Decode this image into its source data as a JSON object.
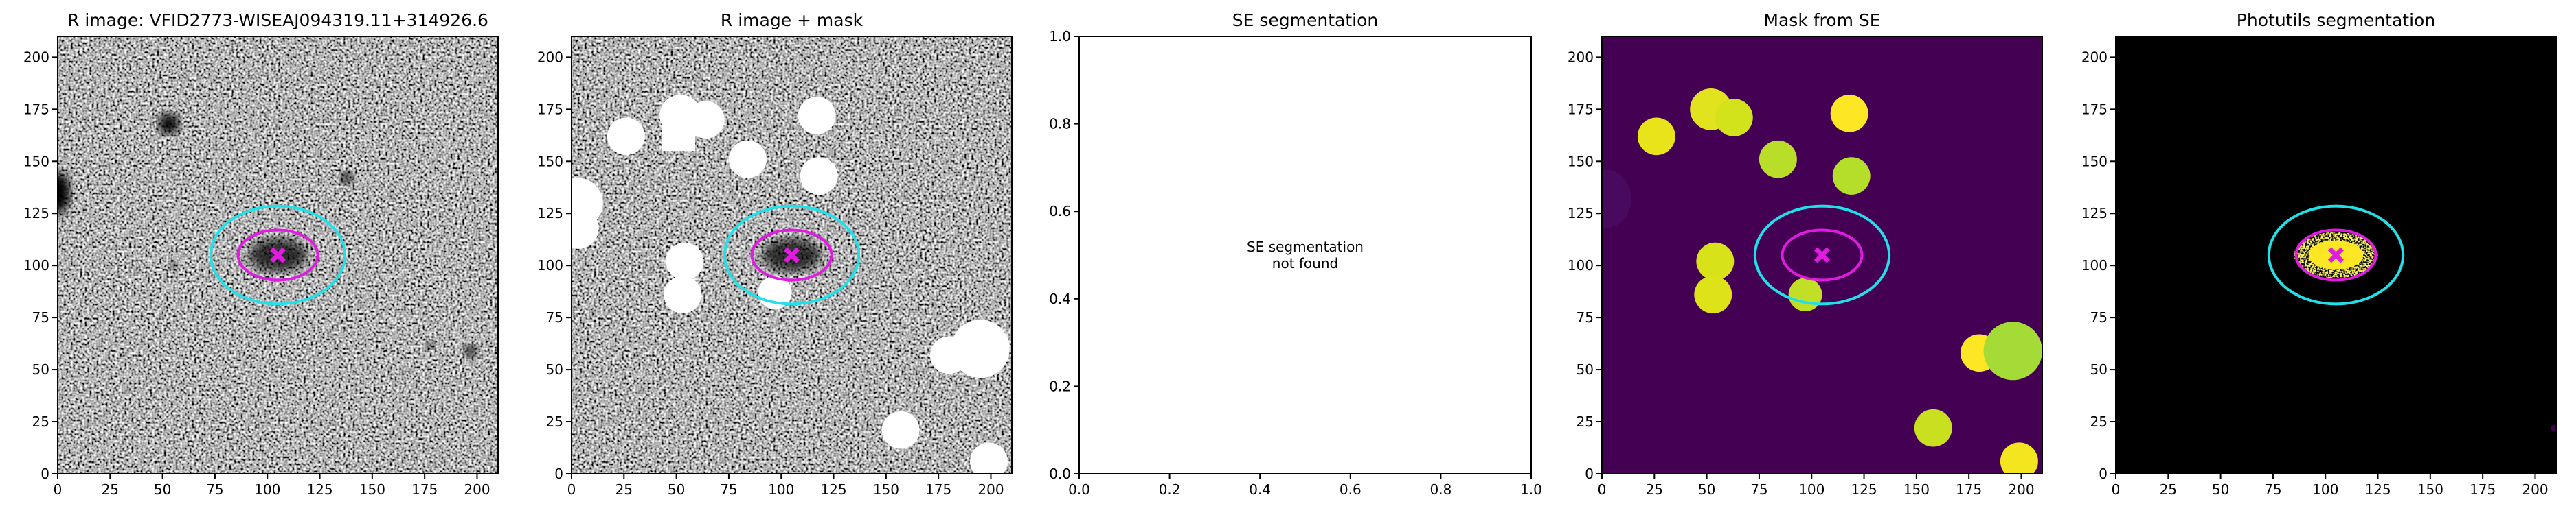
{
  "chart_data": [
    {
      "type": "image",
      "title": "R image: VFID2773-WISEAJ094319.11+314926.6",
      "xlim": [
        0,
        210
      ],
      "ylim": [
        0,
        210
      ],
      "xticks": [
        0,
        25,
        50,
        75,
        100,
        125,
        150,
        175,
        200
      ],
      "yticks": [
        0,
        25,
        50,
        75,
        100,
        125,
        150,
        175,
        200
      ]
    },
    {
      "type": "image",
      "title": "R image + mask",
      "xlim": [
        0,
        210
      ],
      "ylim": [
        0,
        210
      ],
      "xticks": [
        0,
        25,
        50,
        75,
        100,
        125,
        150,
        175,
        200
      ],
      "yticks": [
        0,
        25,
        50,
        75,
        100,
        125,
        150,
        175,
        200
      ]
    },
    {
      "type": "blank",
      "title": "SE segmentation",
      "annotation": [
        "SE segmentation",
        "not found"
      ],
      "xlim": [
        0,
        1
      ],
      "ylim": [
        0,
        1
      ],
      "xticks": [
        {
          "value": 0,
          "label": "0.0"
        },
        {
          "value": 0.2,
          "label": "0.2"
        },
        {
          "value": 0.4,
          "label": "0.4"
        },
        {
          "value": 0.6,
          "label": "0.6"
        },
        {
          "value": 0.8,
          "label": "0.8"
        },
        {
          "value": 1,
          "label": "1.0"
        }
      ],
      "yticks": [
        {
          "value": 0,
          "label": "0.0"
        },
        {
          "value": 0.2,
          "label": "0.2"
        },
        {
          "value": 0.4,
          "label": "0.4"
        },
        {
          "value": 0.6,
          "label": "0.6"
        },
        {
          "value": 0.8,
          "label": "0.8"
        },
        {
          "value": 1,
          "label": "1.0"
        }
      ]
    },
    {
      "type": "image",
      "title": "Mask from SE",
      "xlim": [
        0,
        210
      ],
      "ylim": [
        0,
        210
      ],
      "xticks": [
        0,
        25,
        50,
        75,
        100,
        125,
        150,
        175,
        200
      ],
      "yticks": [
        0,
        25,
        50,
        75,
        100,
        125,
        150,
        175,
        200
      ]
    },
    {
      "type": "image",
      "title": "Photutils segmentation",
      "xlim": [
        0,
        210
      ],
      "ylim": [
        0,
        210
      ],
      "xticks": [
        0,
        25,
        50,
        75,
        100,
        125,
        150,
        175,
        200
      ],
      "yticks": [
        0,
        25,
        50,
        75,
        100,
        125,
        150,
        175,
        200
      ]
    }
  ]
}
